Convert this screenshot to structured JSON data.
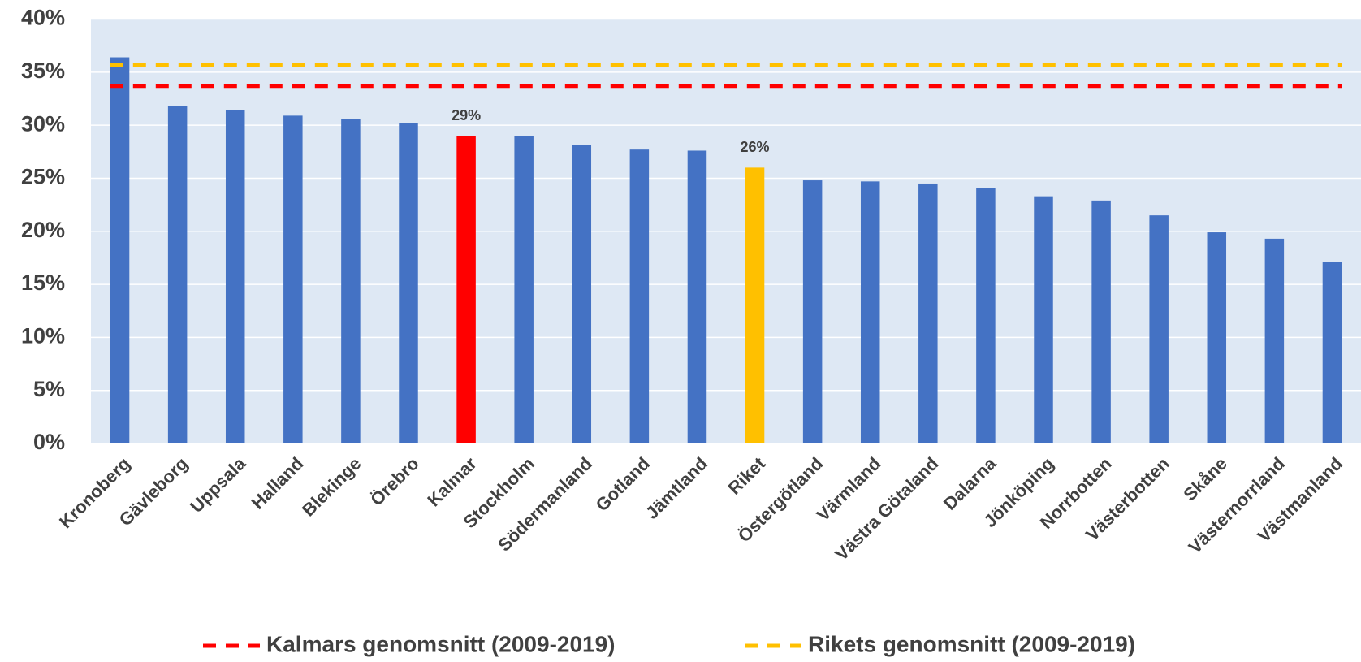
{
  "chart_data": {
    "type": "bar",
    "categories": [
      "Kronoberg",
      "Gävleborg",
      "Uppsala",
      "Halland",
      "Blekinge",
      "Örebro",
      "Kalmar",
      "Stockholm",
      "Södermanland",
      "Gotland",
      "Jämtland",
      "Riket",
      "Östergötland",
      "Värmland",
      "Västra Götaland",
      "Dalarna",
      "Jönköping",
      "Norrbotten",
      "Västerbotten",
      "Skåne",
      "Västernorrland",
      "Västmanland"
    ],
    "values": [
      36.4,
      31.8,
      31.4,
      30.9,
      30.6,
      30.2,
      29.0,
      29.0,
      28.1,
      27.7,
      27.6,
      26.0,
      24.8,
      24.7,
      24.5,
      24.1,
      23.3,
      22.9,
      21.5,
      19.9,
      19.3,
      17.1
    ],
    "value_labels": [
      null,
      null,
      null,
      null,
      null,
      null,
      "29%",
      null,
      null,
      null,
      null,
      "26%",
      null,
      null,
      null,
      null,
      null,
      null,
      null,
      null,
      null,
      null
    ],
    "colors": [
      "#4472c4",
      "#4472c4",
      "#4472c4",
      "#4472c4",
      "#4472c4",
      "#4472c4",
      "#ff0000",
      "#4472c4",
      "#4472c4",
      "#4472c4",
      "#4472c4",
      "#ffc000",
      "#4472c4",
      "#4472c4",
      "#4472c4",
      "#4472c4",
      "#4472c4",
      "#4472c4",
      "#4472c4",
      "#4472c4",
      "#4472c4",
      "#4472c4"
    ],
    "reference_lines": [
      {
        "name": "Kalmars genomsnitt (2009-2019)",
        "color": "#ff0000",
        "value": 33.7
      },
      {
        "name": "Rikets genomsnitt (2009-2019)",
        "color": "#ffc000",
        "value": 35.7
      }
    ],
    "ylim": [
      0,
      40
    ],
    "yticks": [
      {
        "value": 0,
        "label": "0%"
      },
      {
        "value": 5,
        "label": "5%"
      },
      {
        "value": 10,
        "label": "10%"
      },
      {
        "value": 15,
        "label": "15%"
      },
      {
        "value": 20,
        "label": "20%"
      },
      {
        "value": 25,
        "label": "25%"
      },
      {
        "value": 30,
        "label": "30%"
      },
      {
        "value": 35,
        "label": "35%"
      },
      {
        "value": 40,
        "label": "40%"
      }
    ],
    "grid": true,
    "legend": "bottom"
  }
}
